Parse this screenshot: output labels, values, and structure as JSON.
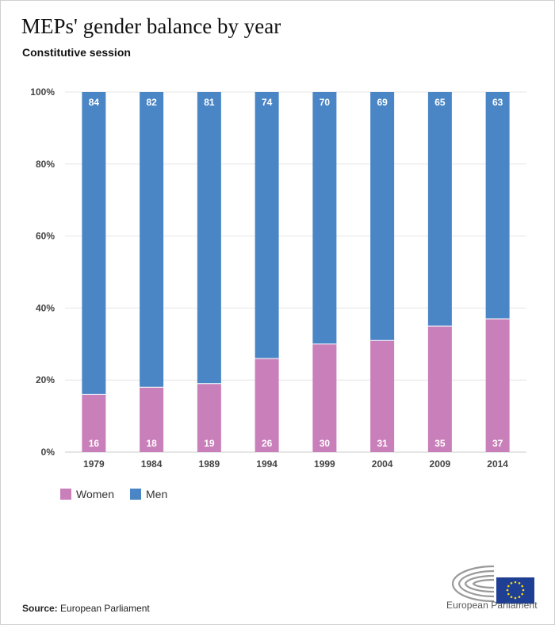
{
  "title": "MEPs' gender balance by year",
  "subtitle": "Constitutive session",
  "source_label": "Source:",
  "source_value": "European Parliament",
  "logo_text": "European Parliament",
  "colors": {
    "women": "#c97fb9",
    "men": "#4a86c6",
    "grid": "#e6e6e6",
    "axis": "#cccccc"
  },
  "chart_data": {
    "type": "bar",
    "stacked": true,
    "categories": [
      "1979",
      "1984",
      "1989",
      "1994",
      "1999",
      "2004",
      "2009",
      "2014"
    ],
    "series": [
      {
        "name": "Women",
        "values": [
          16,
          18,
          19,
          26,
          30,
          31,
          35,
          37
        ]
      },
      {
        "name": "Men",
        "values": [
          84,
          82,
          81,
          74,
          70,
          69,
          65,
          63
        ]
      }
    ],
    "ylim": [
      0,
      100
    ],
    "y_ticks": [
      "0%",
      "20%",
      "40%",
      "60%",
      "80%",
      "100%"
    ],
    "grid": true,
    "legend": "bottom-left"
  }
}
